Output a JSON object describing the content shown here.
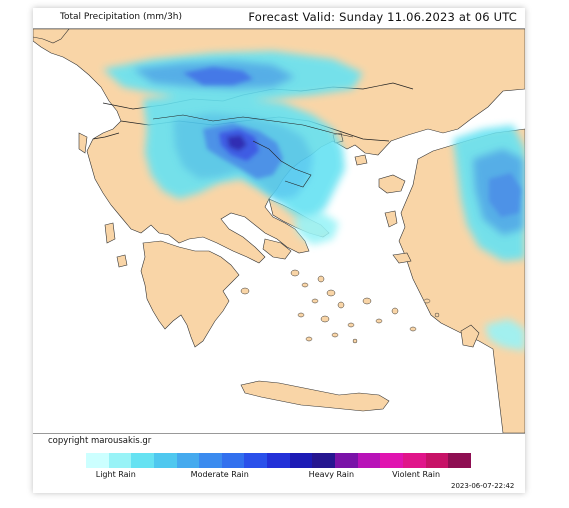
{
  "header": {
    "product": "Total Precipitation (mm/3h)",
    "forecast": "Forecast Valid:  Sunday 11.06.2023 at 06 UTC"
  },
  "footer": {
    "copyright": "copyright marousakis.gr",
    "timestamp": "2023-06-07-22:42"
  },
  "legend": {
    "colors": [
      "#ccffff",
      "#99f3f7",
      "#66e2f2",
      "#4fc8ef",
      "#45aaee",
      "#3b8bef",
      "#3270ee",
      "#2a50ea",
      "#2331d8",
      "#1d1bb5",
      "#261690",
      "#7a13a8",
      "#b813b8",
      "#e014b0",
      "#e0158a",
      "#c71267",
      "#8e0e52"
    ],
    "labels": [
      {
        "text": "Light Rain",
        "pos": 0.08
      },
      {
        "text": "Moderate Rain",
        "pos": 0.35
      },
      {
        "text": "Heavy Rain",
        "pos": 0.64
      },
      {
        "text": "Violent Rain",
        "pos": 0.86
      }
    ]
  },
  "map_colors": {
    "land": "#f9d5a7",
    "sea": "#ffffff",
    "border": "#333333"
  }
}
